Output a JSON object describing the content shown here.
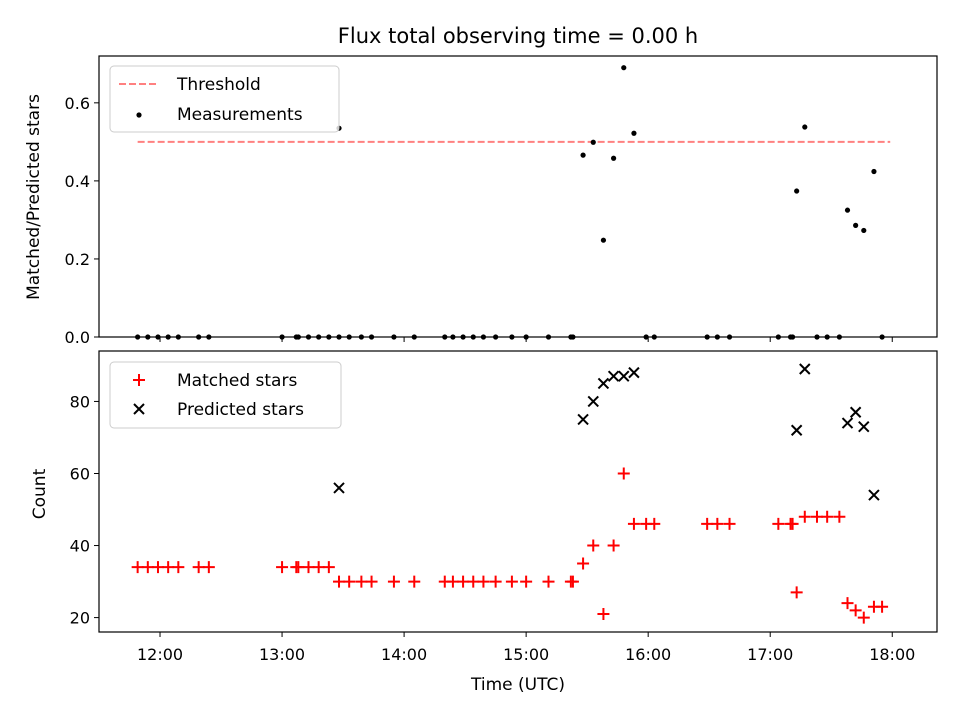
{
  "chart_data": [
    {
      "type": "scatter",
      "title": "Flux total observing time = 0.00 h",
      "xlabel": "",
      "ylabel": "Matched/Predicted stars",
      "xlim": [
        "11:30",
        "18:22"
      ],
      "ylim": [
        0,
        0.72
      ],
      "yticks": [
        "0.0",
        "0.2",
        "0.4",
        "0.6"
      ],
      "legend_position": "top-left",
      "threshold": {
        "name": "Threshold",
        "y": 0.5,
        "x_range": [
          "11:49",
          "17:59"
        ],
        "color": "#ff8080",
        "style": "dashed"
      },
      "series": [
        {
          "name": "Measurements",
          "color": "#000000",
          "marker": "dot",
          "points": [
            [
              "11:49",
              0
            ],
            [
              "11:54",
              0
            ],
            [
              "11:59",
              0
            ],
            [
              "12:04",
              0
            ],
            [
              "12:09",
              0
            ],
            [
              "12:19",
              0
            ],
            [
              "12:24",
              0
            ],
            [
              "13:00",
              0
            ],
            [
              "13:07",
              0
            ],
            [
              "13:08",
              0
            ],
            [
              "13:13",
              0
            ],
            [
              "13:18",
              0
            ],
            [
              "13:23",
              0
            ],
            [
              "13:28",
              0
            ],
            [
              "13:28",
              0.535
            ],
            [
              "13:33",
              0
            ],
            [
              "13:39",
              0
            ],
            [
              "13:44",
              0
            ],
            [
              "13:55",
              0
            ],
            [
              "14:05",
              0
            ],
            [
              "14:20",
              0
            ],
            [
              "14:24",
              0
            ],
            [
              "14:29",
              0
            ],
            [
              "14:34",
              0
            ],
            [
              "14:39",
              0
            ],
            [
              "14:45",
              0
            ],
            [
              "14:53",
              0
            ],
            [
              "15:00",
              0
            ],
            [
              "15:11",
              0
            ],
            [
              "15:22",
              0
            ],
            [
              "15:23",
              0
            ],
            [
              "15:28",
              0.466
            ],
            [
              "15:33",
              0.499
            ],
            [
              "15:38",
              0.248
            ],
            [
              "15:43",
              0.458
            ],
            [
              "15:48",
              0.69
            ],
            [
              "15:53",
              0.522
            ],
            [
              "15:59",
              0
            ],
            [
              "16:03",
              0
            ],
            [
              "16:29",
              0
            ],
            [
              "16:34",
              0
            ],
            [
              "16:40",
              0
            ],
            [
              "17:04",
              0
            ],
            [
              "17:10",
              0
            ],
            [
              "17:11",
              0
            ],
            [
              "17:13",
              0.374
            ],
            [
              "17:17",
              0.538
            ],
            [
              "17:23",
              0
            ],
            [
              "17:28",
              0
            ],
            [
              "17:34",
              0
            ],
            [
              "17:38",
              0.325
            ],
            [
              "17:42",
              0.286
            ],
            [
              "17:46",
              0.273
            ],
            [
              "17:51",
              0.424
            ],
            [
              "17:55",
              0
            ]
          ]
        }
      ]
    },
    {
      "type": "scatter",
      "title": "",
      "xlabel": "Time (UTC)",
      "ylabel": "Count",
      "xlim": [
        "11:30",
        "18:22"
      ],
      "ylim": [
        16,
        94
      ],
      "xticks": [
        "12:00",
        "13:00",
        "14:00",
        "15:00",
        "16:00",
        "17:00",
        "18:00"
      ],
      "yticks": [
        "20",
        "40",
        "60",
        "80"
      ],
      "legend_position": "top-left",
      "series": [
        {
          "name": "Matched stars",
          "color": "#ff0000",
          "marker": "plus",
          "points": [
            [
              "11:49",
              34
            ],
            [
              "11:54",
              34
            ],
            [
              "11:59",
              34
            ],
            [
              "12:04",
              34
            ],
            [
              "12:09",
              34
            ],
            [
              "12:19",
              34
            ],
            [
              "12:24",
              34
            ],
            [
              "13:00",
              34
            ],
            [
              "13:07",
              34
            ],
            [
              "13:08",
              34
            ],
            [
              "13:13",
              34
            ],
            [
              "13:18",
              34
            ],
            [
              "13:23",
              34
            ],
            [
              "13:28",
              30
            ],
            [
              "13:33",
              30
            ],
            [
              "13:39",
              30
            ],
            [
              "13:44",
              30
            ],
            [
              "13:55",
              30
            ],
            [
              "14:05",
              30
            ],
            [
              "14:20",
              30
            ],
            [
              "14:24",
              30
            ],
            [
              "14:29",
              30
            ],
            [
              "14:34",
              30
            ],
            [
              "14:39",
              30
            ],
            [
              "14:45",
              30
            ],
            [
              "14:53",
              30
            ],
            [
              "15:00",
              30
            ],
            [
              "15:11",
              30
            ],
            [
              "15:22",
              30
            ],
            [
              "15:23",
              30
            ],
            [
              "15:28",
              35
            ],
            [
              "15:33",
              40
            ],
            [
              "15:38",
              21
            ],
            [
              "15:43",
              40
            ],
            [
              "15:48",
              60
            ],
            [
              "15:53",
              46
            ],
            [
              "15:59",
              46
            ],
            [
              "16:03",
              46
            ],
            [
              "16:29",
              46
            ],
            [
              "16:34",
              46
            ],
            [
              "16:40",
              46
            ],
            [
              "17:04",
              46
            ],
            [
              "17:10",
              46
            ],
            [
              "17:11",
              46
            ],
            [
              "17:13",
              27
            ],
            [
              "17:17",
              48
            ],
            [
              "17:23",
              48
            ],
            [
              "17:28",
              48
            ],
            [
              "17:34",
              48
            ],
            [
              "17:38",
              24
            ],
            [
              "17:42",
              22
            ],
            [
              "17:46",
              20
            ],
            [
              "17:51",
              23
            ],
            [
              "17:55",
              23
            ]
          ]
        },
        {
          "name": "Predicted stars",
          "color": "#000000",
          "marker": "x",
          "points": [
            [
              "13:28",
              56
            ],
            [
              "15:28",
              75
            ],
            [
              "15:33",
              80
            ],
            [
              "15:38",
              85
            ],
            [
              "15:43",
              87
            ],
            [
              "15:48",
              87
            ],
            [
              "15:53",
              88
            ],
            [
              "17:13",
              72
            ],
            [
              "17:17",
              89
            ],
            [
              "17:38",
              74
            ],
            [
              "17:42",
              77
            ],
            [
              "17:46",
              73
            ],
            [
              "17:51",
              54
            ]
          ]
        }
      ]
    }
  ]
}
